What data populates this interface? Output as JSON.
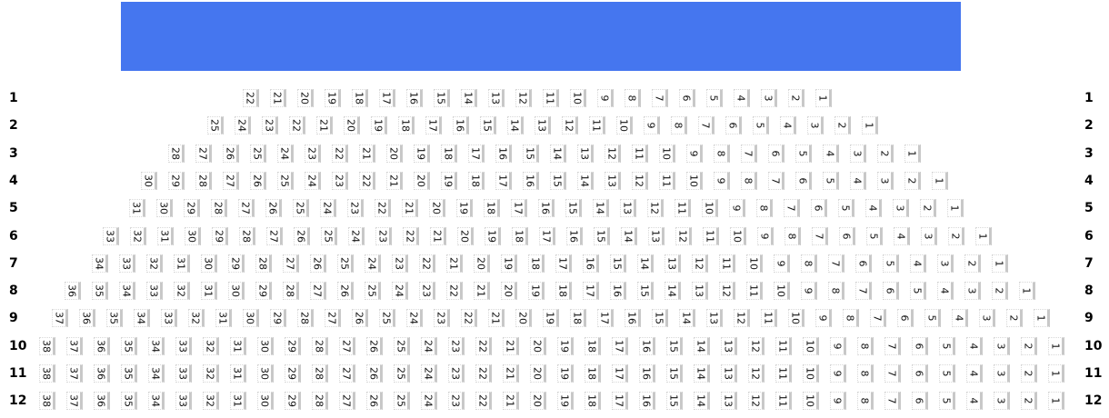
{
  "screen": {
    "color": "#4576ef"
  },
  "rows": [
    {
      "label": "1",
      "seats": [
        "22",
        "21",
        "20",
        "19",
        "18",
        "17",
        "16",
        "15",
        "14",
        "13",
        "12",
        "11",
        "10",
        "9",
        "8",
        "7",
        "6",
        "5",
        "4",
        "3",
        "2",
        "1"
      ]
    },
    {
      "label": "2",
      "seats": [
        "25",
        "24",
        "23",
        "22",
        "21",
        "20",
        "19",
        "18",
        "17",
        "16",
        "15",
        "14",
        "13",
        "12",
        "11",
        "10",
        "9",
        "8",
        "7",
        "6",
        "5",
        "4",
        "3",
        "2",
        "1"
      ]
    },
    {
      "label": "3",
      "seats": [
        "28",
        "27",
        "26",
        "25",
        "24",
        "23",
        "22",
        "21",
        "20",
        "19",
        "18",
        "17",
        "16",
        "15",
        "14",
        "13",
        "12",
        "11",
        "10",
        "9",
        "8",
        "7",
        "6",
        "5",
        "4",
        "3",
        "2",
        "1"
      ]
    },
    {
      "label": "4",
      "seats": [
        "30",
        "29",
        "28",
        "27",
        "26",
        "25",
        "24",
        "23",
        "22",
        "21",
        "20",
        "19",
        "18",
        "17",
        "16",
        "15",
        "14",
        "13",
        "12",
        "11",
        "10",
        "9",
        "8",
        "7",
        "6",
        "5",
        "4",
        "3",
        "2",
        "1"
      ]
    },
    {
      "label": "5",
      "seats": [
        "31",
        "30",
        "29",
        "28",
        "27",
        "26",
        "25",
        "24",
        "23",
        "22",
        "21",
        "20",
        "19",
        "18",
        "17",
        "16",
        "15",
        "14",
        "13",
        "12",
        "11",
        "10",
        "9",
        "8",
        "7",
        "6",
        "5",
        "4",
        "3",
        "2",
        "1"
      ]
    },
    {
      "label": "6",
      "seats": [
        "33",
        "32",
        "31",
        "30",
        "29",
        "28",
        "27",
        "26",
        "25",
        "24",
        "23",
        "22",
        "21",
        "20",
        "19",
        "18",
        "17",
        "16",
        "15",
        "14",
        "13",
        "12",
        "11",
        "10",
        "9",
        "8",
        "7",
        "6",
        "5",
        "4",
        "3",
        "2",
        "1"
      ]
    },
    {
      "label": "7",
      "seats": [
        "34",
        "33",
        "32",
        "31",
        "30",
        "29",
        "28",
        "27",
        "26",
        "25",
        "24",
        "23",
        "22",
        "21",
        "20",
        "19",
        "18",
        "17",
        "16",
        "15",
        "14",
        "13",
        "12",
        "11",
        "10",
        "9",
        "8",
        "7",
        "6",
        "5",
        "4",
        "3",
        "2",
        "1"
      ]
    },
    {
      "label": "8",
      "seats": [
        "36",
        "35",
        "34",
        "33",
        "32",
        "31",
        "30",
        "29",
        "28",
        "27",
        "26",
        "25",
        "24",
        "23",
        "22",
        "21",
        "20",
        "19",
        "18",
        "17",
        "16",
        "15",
        "14",
        "13",
        "12",
        "11",
        "10",
        "9",
        "8",
        "7",
        "6",
        "5",
        "4",
        "3",
        "2",
        "1"
      ]
    },
    {
      "label": "9",
      "seats": [
        "37",
        "36",
        "35",
        "34",
        "33",
        "32",
        "31",
        "30",
        "29",
        "28",
        "27",
        "26",
        "25",
        "24",
        "23",
        "22",
        "21",
        "20",
        "19",
        "18",
        "17",
        "16",
        "15",
        "14",
        "13",
        "12",
        "11",
        "10",
        "9",
        "8",
        "7",
        "6",
        "5",
        "4",
        "3",
        "2",
        "1"
      ]
    },
    {
      "label": "10",
      "seats": [
        "38",
        "37",
        "36",
        "35",
        "34",
        "33",
        "32",
        "31",
        "30",
        "29",
        "28",
        "27",
        "26",
        "25",
        "24",
        "23",
        "22",
        "21",
        "20",
        "19",
        "18",
        "17",
        "16",
        "15",
        "14",
        "13",
        "12",
        "11",
        "10",
        "9",
        "8",
        "7",
        "6",
        "5",
        "4",
        "3",
        "2",
        "1"
      ]
    },
    {
      "label": "11",
      "seats": [
        "38",
        "37",
        "36",
        "35",
        "34",
        "33",
        "32",
        "31",
        "30",
        "29",
        "28",
        "27",
        "26",
        "25",
        "24",
        "23",
        "22",
        "21",
        "20",
        "19",
        "18",
        "17",
        "16",
        "15",
        "14",
        "13",
        "12",
        "11",
        "10",
        "9",
        "8",
        "7",
        "6",
        "5",
        "4",
        "3",
        "2",
        "1"
      ]
    },
    {
      "label": "12",
      "seats": [
        "38",
        "37",
        "36",
        "35",
        "34",
        "33",
        "32",
        "31",
        "30",
        "29",
        "28",
        "27",
        "26",
        "25",
        "24",
        "23",
        "22",
        "21",
        "20",
        "19",
        "18",
        "17",
        "16",
        "15",
        "14",
        "13",
        "12",
        "11",
        "10",
        "9",
        "8",
        "7",
        "6",
        "5",
        "4",
        "3",
        "2",
        "1"
      ]
    }
  ]
}
